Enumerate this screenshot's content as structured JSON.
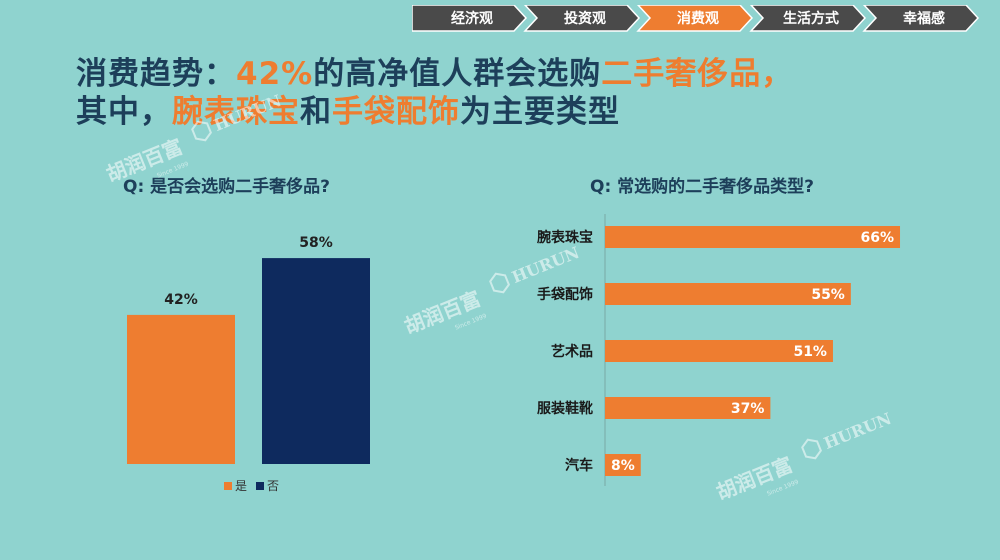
{
  "nav": {
    "tabs": [
      {
        "label": "经济观",
        "active": false
      },
      {
        "label": "投资观",
        "active": false
      },
      {
        "label": "消费观",
        "active": true
      },
      {
        "label": "生活方式",
        "active": false
      },
      {
        "label": "幸福感",
        "active": false
      }
    ],
    "active_color": "#ee7d30",
    "inactive_color": "#4a4a4a"
  },
  "headline": {
    "line1_a": "消费趋势：",
    "line1_b": "42%",
    "line1_c": "的高净值人群会选购",
    "line1_d": "二手奢侈品",
    "line1_e": "，",
    "line2_a": "其中，",
    "line2_b": "腕表珠宝",
    "line2_c": "和",
    "line2_d": "手袋配饰",
    "line2_e": "为主要类型"
  },
  "watermark": {
    "brand_cn": "胡润百富",
    "brand_en": "HURUN",
    "since": "Since 1999"
  },
  "chart_data": [
    {
      "type": "bar",
      "title": "Q: 是否会选购二手奢侈品?",
      "categories": [
        "是",
        "否"
      ],
      "values": [
        42,
        58
      ],
      "data_labels": [
        "42%",
        "58%"
      ],
      "colors": [
        "#ee7d30",
        "#0e2a5e"
      ],
      "legend": [
        "是",
        "否"
      ],
      "legend_position": "bottom",
      "ylim": [
        0,
        100
      ],
      "grid": false
    },
    {
      "type": "bar",
      "orientation": "horizontal",
      "title": "Q: 常选购的二手奢侈品类型?",
      "categories": [
        "腕表珠宝",
        "手袋配饰",
        "艺术品",
        "服装鞋靴",
        "汽车"
      ],
      "values": [
        66,
        55,
        51,
        37,
        8
      ],
      "data_labels": [
        "66%",
        "55%",
        "51%",
        "37%",
        "8%"
      ],
      "color": "#ee7d30",
      "xlim": [
        0,
        100
      ],
      "grid": false
    }
  ]
}
